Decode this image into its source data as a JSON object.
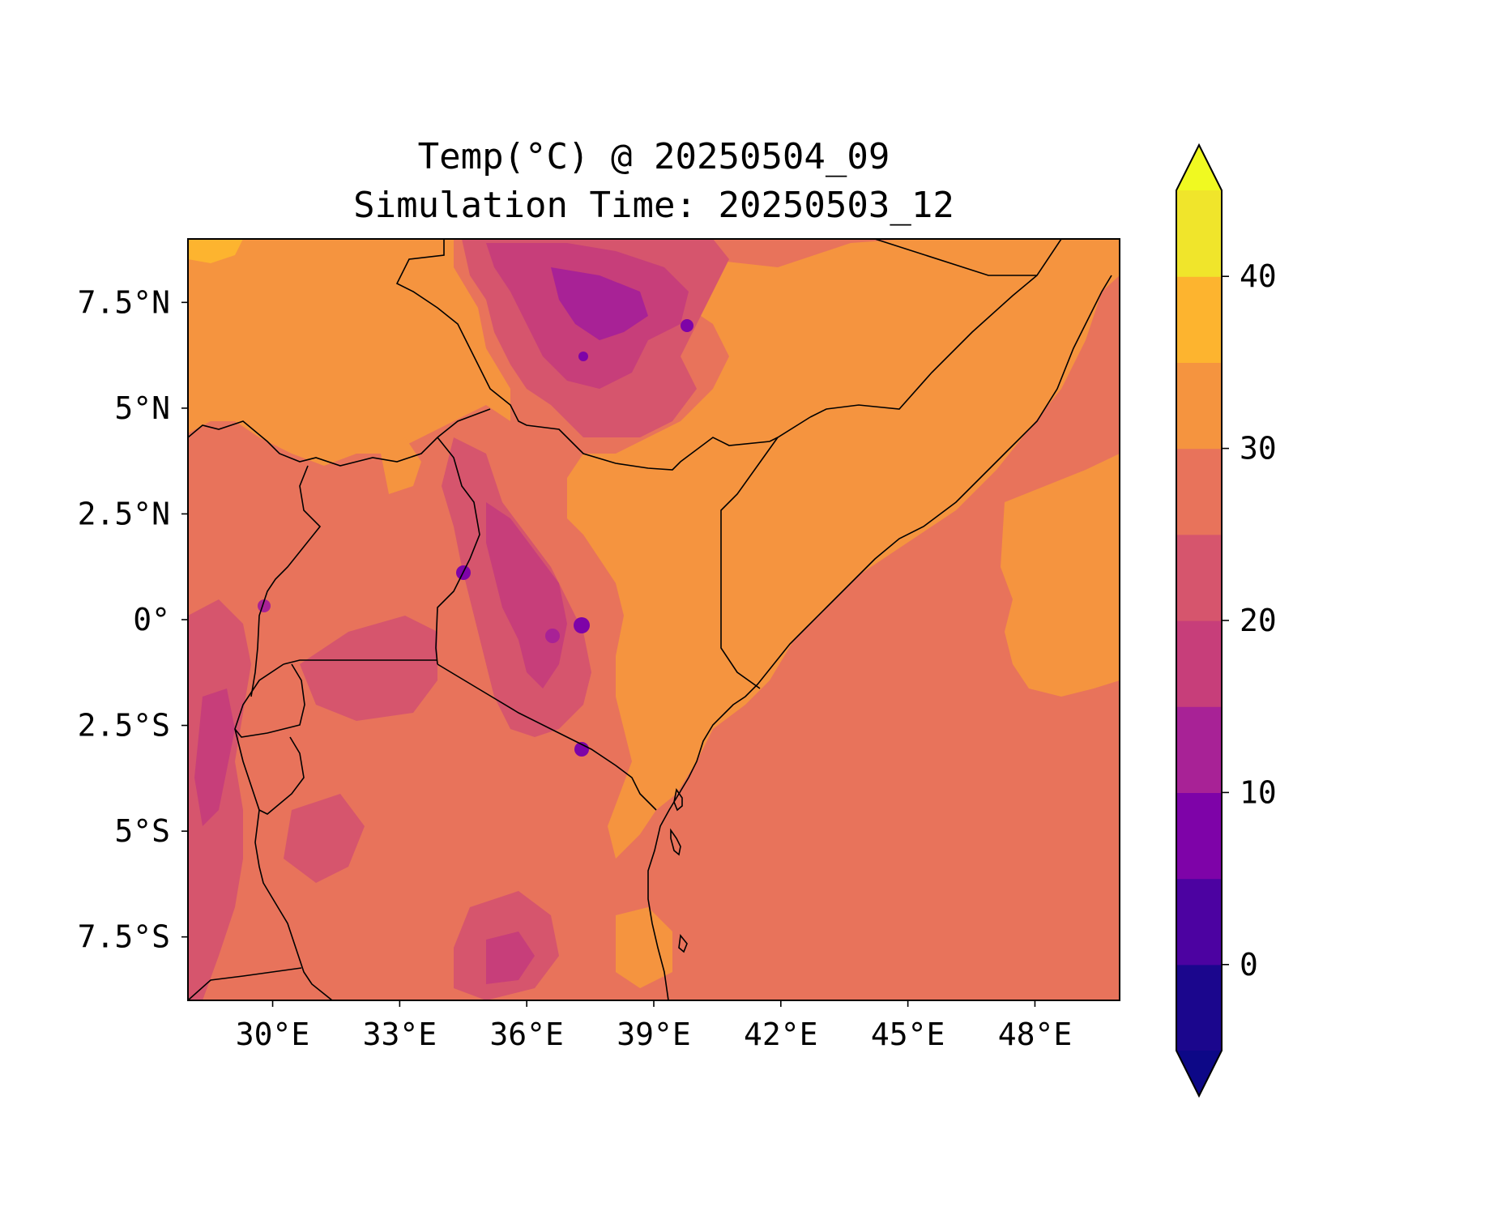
{
  "map": {
    "title_line1": "Temp(°C) @ 20250504_09",
    "title_line2": "Simulation Time: 20250503_12",
    "variable": "Temp(°C)",
    "projection": "PlateCarree",
    "extent": {
      "lon": [
        28,
        50
      ],
      "lat": [
        -9,
        9
      ]
    },
    "x_ticks": [
      {
        "value": 30,
        "label": "30°E"
      },
      {
        "value": 33,
        "label": "33°E"
      },
      {
        "value": 36,
        "label": "36°E"
      },
      {
        "value": 39,
        "label": "39°E"
      },
      {
        "value": 42,
        "label": "42°E"
      },
      {
        "value": 45,
        "label": "45°E"
      },
      {
        "value": 48,
        "label": "48°E"
      }
    ],
    "y_ticks": [
      {
        "value": 7.5,
        "label": "7.5°N"
      },
      {
        "value": 5,
        "label": "5°N"
      },
      {
        "value": 2.5,
        "label": "2.5°N"
      },
      {
        "value": 0,
        "label": "0°"
      },
      {
        "value": -2.5,
        "label": "2.5°S"
      },
      {
        "value": -5,
        "label": "5°S"
      },
      {
        "value": -7.5,
        "label": "7.5°S"
      }
    ],
    "colorbar": {
      "range": [
        -5,
        45
      ],
      "extend": "both",
      "levels": [
        -5,
        0,
        5,
        10,
        15,
        20,
        25,
        30,
        35,
        40,
        45
      ],
      "colors": [
        "#1b068d",
        "#4c02a1",
        "#7e03a8",
        "#a82296",
        "#c73e7a",
        "#d6556d",
        "#e8735b",
        "#f5943f",
        "#fdb42f",
        "#f0e52b"
      ],
      "under_color": "#0d0887",
      "over_color": "#f0f921",
      "ticks": [
        {
          "value": 0,
          "label": "0"
        },
        {
          "value": 10,
          "label": "10"
        },
        {
          "value": 20,
          "label": "20"
        },
        {
          "value": 30,
          "label": "30"
        },
        {
          "value": 40,
          "label": "40"
        }
      ]
    },
    "fill_colors": {
      "land_base": "#e8735b",
      "hot": "#f5943f",
      "hotter": "#fdb42f",
      "cool": "#d6556d",
      "cold": "#c73e7a",
      "colder": "#a82296",
      "coldest": "#7e03a8"
    }
  }
}
